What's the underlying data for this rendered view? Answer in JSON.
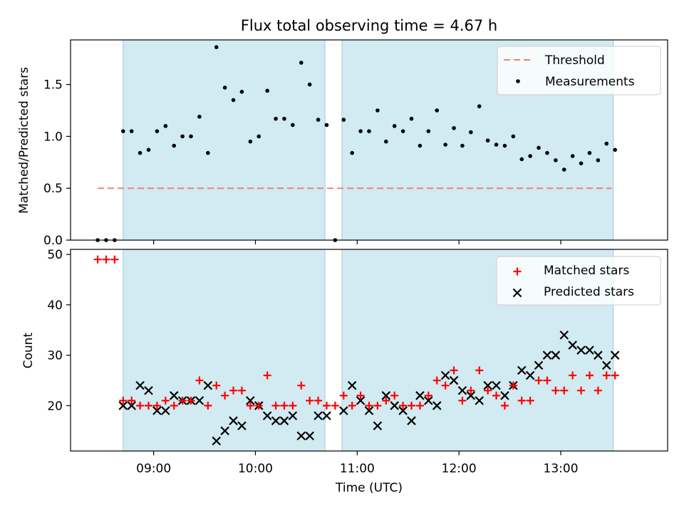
{
  "title": "Flux total observing time = 4.67 h",
  "xlabel": "Time (UTC)",
  "x_ticks": [
    "09:00",
    "10:00",
    "11:00",
    "12:00",
    "13:00"
  ],
  "colors": {
    "shade": "#add8e6",
    "threshold": "#f08080",
    "measurement": "#000000",
    "matched": "#ff0000",
    "predicted": "#000000"
  },
  "chart_data": [
    {
      "type": "scatter",
      "ylabel": "Matched/Predicted stars",
      "xlim": [
        "08:11",
        "14:03"
      ],
      "ylim": [
        0,
        1.93
      ],
      "y_ticks": [
        "0.0",
        "0.5",
        "1.0",
        "1.5"
      ],
      "legend_position": "top-right",
      "shaded_intervals": [
        [
          "08:42",
          "10:41"
        ],
        [
          "10:51",
          "13:31"
        ]
      ],
      "threshold": {
        "name": "Threshold",
        "y": 0.5,
        "x_range": [
          "08:27",
          "13:30"
        ]
      },
      "series": [
        {
          "name": "Measurements",
          "x": [
            "08:27",
            "08:32",
            "08:37",
            "08:42",
            "08:47",
            "08:52",
            "08:57",
            "09:02",
            "09:07",
            "09:12",
            "09:17",
            "09:22",
            "09:27",
            "09:32",
            "09:37",
            "09:42",
            "09:47",
            "09:52",
            "09:57",
            "10:02",
            "10:07",
            "10:12",
            "10:17",
            "10:22",
            "10:27",
            "10:32",
            "10:37",
            "10:42",
            "10:47",
            "10:52",
            "10:57",
            "11:02",
            "11:07",
            "11:12",
            "11:17",
            "11:22",
            "11:27",
            "11:32",
            "11:37",
            "11:42",
            "11:47",
            "11:52",
            "11:57",
            "12:02",
            "12:07",
            "12:12",
            "12:17",
            "12:22",
            "12:27",
            "12:32",
            "12:37",
            "12:42",
            "12:47",
            "12:52",
            "12:57",
            "13:02",
            "13:07",
            "13:12",
            "13:17",
            "13:22",
            "13:27",
            "13:32"
          ],
          "y": [
            0.0,
            0.0,
            0.0,
            1.05,
            1.05,
            0.84,
            0.87,
            1.05,
            1.1,
            0.91,
            1.0,
            1.0,
            1.19,
            0.84,
            1.86,
            1.47,
            1.35,
            1.43,
            0.95,
            1.0,
            1.44,
            1.17,
            1.17,
            1.11,
            1.71,
            1.5,
            1.16,
            1.11,
            0.0,
            1.16,
            0.84,
            1.05,
            1.05,
            1.25,
            0.95,
            1.1,
            1.05,
            1.17,
            0.91,
            1.05,
            1.25,
            0.92,
            1.08,
            0.91,
            1.04,
            1.29,
            0.96,
            0.92,
            0.91,
            1.0,
            0.78,
            0.81,
            0.89,
            0.84,
            0.77,
            0.68,
            0.81,
            0.74,
            0.84,
            0.77,
            0.93,
            0.87
          ]
        }
      ]
    },
    {
      "type": "scatter",
      "ylabel": "Count",
      "xlim": [
        "08:11",
        "14:03"
      ],
      "ylim": [
        11,
        51
      ],
      "y_ticks": [
        "20",
        "30",
        "40",
        "50"
      ],
      "legend_position": "top-right",
      "shaded_intervals": [
        [
          "08:42",
          "10:41"
        ],
        [
          "10:51",
          "13:31"
        ]
      ],
      "series": [
        {
          "name": "Matched stars",
          "marker": "+",
          "x": [
            "08:27",
            "08:32",
            "08:37",
            "08:42",
            "08:47",
            "08:52",
            "08:57",
            "09:02",
            "09:07",
            "09:12",
            "09:17",
            "09:22",
            "09:27",
            "09:32",
            "09:37",
            "09:42",
            "09:47",
            "09:52",
            "09:57",
            "10:02",
            "10:07",
            "10:12",
            "10:17",
            "10:22",
            "10:27",
            "10:32",
            "10:37",
            "10:42",
            "10:47",
            "10:52",
            "10:57",
            "11:02",
            "11:07",
            "11:12",
            "11:17",
            "11:22",
            "11:27",
            "11:32",
            "11:37",
            "11:42",
            "11:47",
            "11:52",
            "11:57",
            "12:02",
            "12:07",
            "12:12",
            "12:17",
            "12:22",
            "12:27",
            "12:32",
            "12:37",
            "12:42",
            "12:47",
            "12:52",
            "12:57",
            "13:02",
            "13:07",
            "13:12",
            "13:17",
            "13:22",
            "13:27",
            "13:32"
          ],
          "y": [
            49,
            49,
            49,
            21,
            21,
            20,
            20,
            20,
            21,
            20,
            21,
            21,
            25,
            20,
            24,
            22,
            23,
            23,
            20,
            20,
            26,
            20,
            20,
            20,
            24,
            21,
            21,
            20,
            20,
            22,
            20,
            22,
            20,
            20,
            21,
            22,
            20,
            20,
            20,
            22,
            25,
            24,
            27,
            21,
            23,
            27,
            23,
            22,
            20,
            24,
            21,
            21,
            25,
            25,
            23,
            23,
            26,
            23,
            26,
            23,
            26,
            26
          ]
        },
        {
          "name": "Predicted stars",
          "marker": "x",
          "x": [
            "08:42",
            "08:47",
            "08:52",
            "08:57",
            "09:02",
            "09:07",
            "09:12",
            "09:17",
            "09:22",
            "09:27",
            "09:32",
            "09:37",
            "09:42",
            "09:47",
            "09:52",
            "09:57",
            "10:02",
            "10:07",
            "10:12",
            "10:17",
            "10:22",
            "10:27",
            "10:32",
            "10:37",
            "10:42",
            "10:52",
            "10:57",
            "11:02",
            "11:07",
            "11:12",
            "11:17",
            "11:22",
            "11:27",
            "11:32",
            "11:37",
            "11:42",
            "11:47",
            "11:52",
            "11:57",
            "12:02",
            "12:07",
            "12:12",
            "12:17",
            "12:22",
            "12:27",
            "12:32",
            "12:37",
            "12:42",
            "12:47",
            "12:52",
            "12:57",
            "13:02",
            "13:07",
            "13:12",
            "13:17",
            "13:22",
            "13:27",
            "13:32"
          ],
          "y": [
            20,
            20,
            24,
            23,
            19,
            19,
            22,
            21,
            21,
            21,
            24,
            13,
            15,
            17,
            16,
            21,
            20,
            18,
            17,
            17,
            18,
            14,
            14,
            18,
            18,
            19,
            24,
            21,
            19,
            16,
            22,
            20,
            19,
            17,
            22,
            21,
            20,
            26,
            25,
            23,
            22,
            21,
            24,
            24,
            22,
            24,
            27,
            26,
            28,
            30,
            30,
            34,
            32,
            31,
            31,
            30,
            28,
            30
          ]
        }
      ]
    }
  ]
}
